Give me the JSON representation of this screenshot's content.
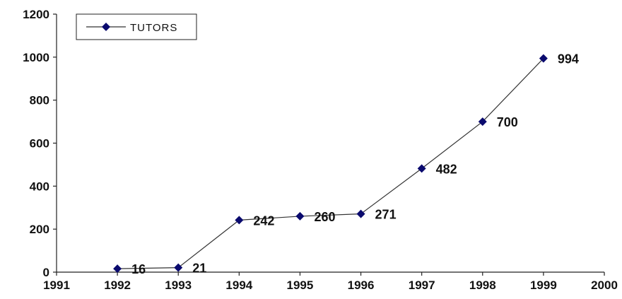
{
  "chart_data": {
    "type": "line",
    "title": "",
    "xlabel": "",
    "ylabel": "",
    "xlim": [
      1991,
      2000
    ],
    "ylim": [
      0,
      1200
    ],
    "x_ticks": [
      "1991",
      "1992",
      "1993",
      "1994",
      "1995",
      "1996",
      "1997",
      "1998",
      "1999",
      "2000"
    ],
    "y_ticks": [
      "0",
      "200",
      "400",
      "600",
      "800",
      "1000",
      "1200"
    ],
    "grid": false,
    "legend_position": "top-left",
    "series": [
      {
        "name": "TUTORS",
        "color": "#0a0a6e",
        "marker": "diamond",
        "line_color": "#333333",
        "x": [
          1992,
          1993,
          1994,
          1995,
          1996,
          1997,
          1998,
          1999
        ],
        "values": [
          16,
          21,
          242,
          260,
          271,
          482,
          700,
          994
        ],
        "labels": [
          "16",
          "21",
          "242",
          "260",
          "271",
          "482",
          "700",
          "994"
        ]
      }
    ]
  }
}
